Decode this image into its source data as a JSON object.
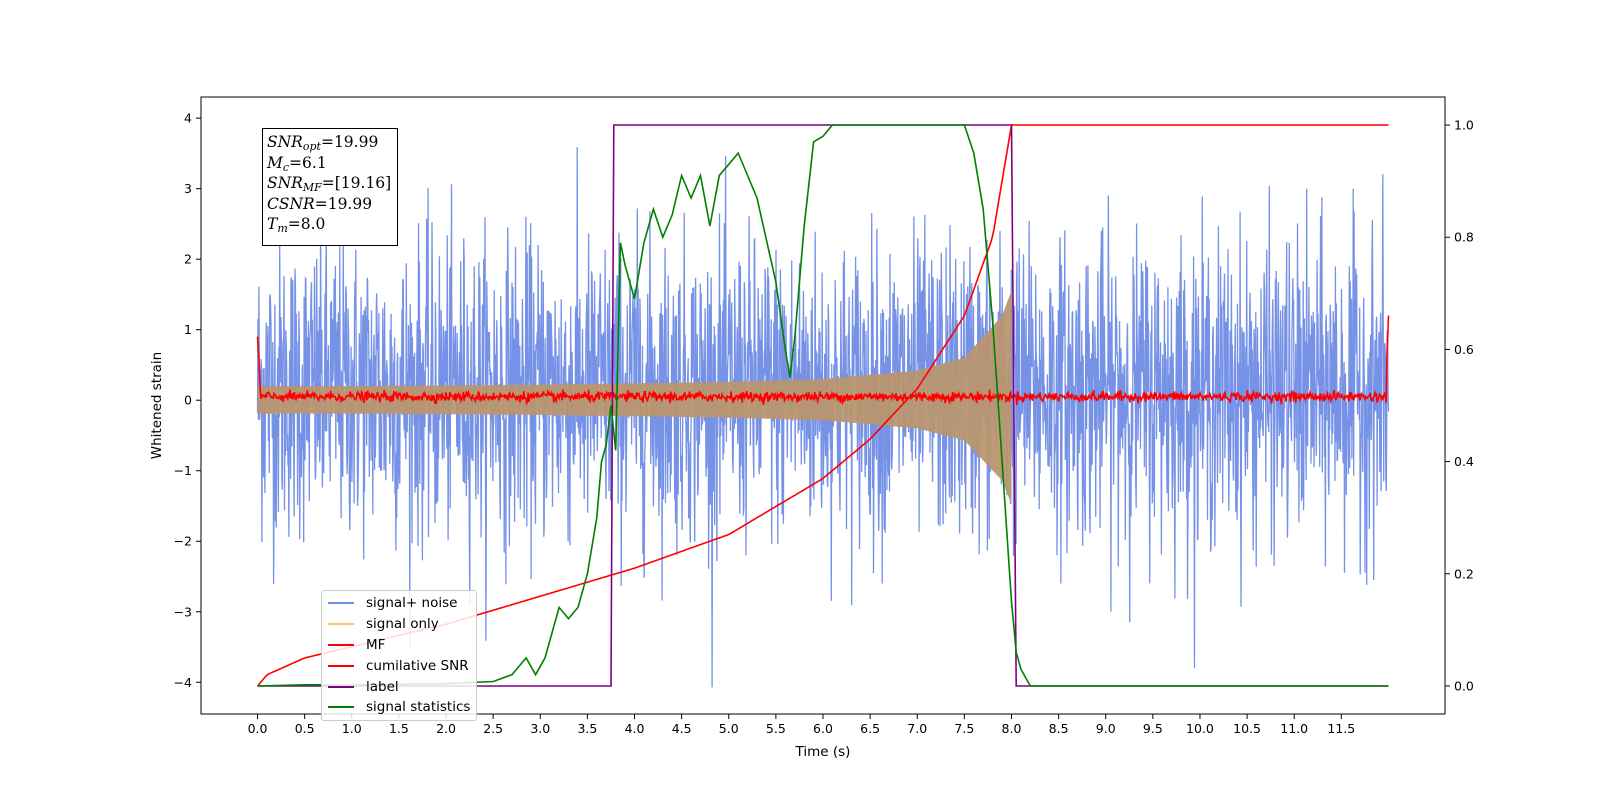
{
  "chart_data": {
    "type": "line",
    "xlabel": "Time (s)",
    "ylabel": "Whitened strain",
    "xlim": [
      -0.6,
      12.6
    ],
    "ylim_left": [
      -4.45,
      4.3
    ],
    "ylim_right": [
      -0.05,
      1.05
    ],
    "x_ticks": [
      "0.0",
      "0.5",
      "1.0",
      "1.5",
      "2.0",
      "2.5",
      "3.0",
      "3.5",
      "4.0",
      "4.5",
      "5.0",
      "5.5",
      "6.0",
      "6.5",
      "7.0",
      "7.5",
      "8.0",
      "8.5",
      "9.0",
      "9.5",
      "10.0",
      "10.5",
      "11.0",
      "11.5"
    ],
    "y_ticks_left": [
      "−4",
      "−3",
      "−2",
      "−1",
      "0",
      "1",
      "2",
      "3",
      "4"
    ],
    "y_ticks_right": [
      "0.0",
      "0.2",
      "0.4",
      "0.6",
      "0.8",
      "1.0"
    ],
    "series": [
      {
        "name": "signal+ noise",
        "color": "#6f8ce6",
        "axis": "left",
        "description_range": [
          -3.5,
          4.0
        ],
        "x_range": [
          0,
          12
        ]
      },
      {
        "name": "signal only",
        "color": "#ffc473",
        "axis": "left",
        "envelope": {
          "x": [
            0,
            1,
            2,
            3,
            4,
            5,
            6,
            7,
            7.5,
            7.9,
            8.0
          ],
          "amp": [
            0.2,
            0.2,
            0.21,
            0.22,
            0.24,
            0.26,
            0.3,
            0.42,
            0.6,
            1.2,
            1.55
          ]
        }
      },
      {
        "name": "MF",
        "color": "#ff0000",
        "axis": "left",
        "baseline": 0.05,
        "x_range": [
          0,
          12
        ]
      },
      {
        "name": "cumilative SNR",
        "color": "#ff0000",
        "axis": "right",
        "x": [
          0,
          0.1,
          0.5,
          1.0,
          2.0,
          3.0,
          4.0,
          5.0,
          6.0,
          6.5,
          7.0,
          7.5,
          7.8,
          8.0,
          8.01,
          12.0
        ],
        "y": [
          0.0,
          0.02,
          0.05,
          0.07,
          0.11,
          0.16,
          0.21,
          0.27,
          0.37,
          0.44,
          0.53,
          0.66,
          0.8,
          1.0,
          1.0,
          1.0
        ]
      },
      {
        "name": "label",
        "color": "#800080",
        "axis": "right",
        "x": [
          0,
          3.75,
          3.78,
          8.0,
          8.05,
          12.0
        ],
        "y": [
          0,
          0,
          1,
          1,
          0,
          0
        ]
      },
      {
        "name": "signal statistics",
        "color": "#008000",
        "axis": "right",
        "x": [
          0,
          0.5,
          1.0,
          1.5,
          2.0,
          2.5,
          2.7,
          2.85,
          2.95,
          3.05,
          3.1,
          3.2,
          3.3,
          3.4,
          3.5,
          3.55,
          3.6,
          3.65,
          3.7,
          3.75,
          3.8,
          3.85,
          3.9,
          4.0,
          4.05,
          4.1,
          4.2,
          4.3,
          4.4,
          4.5,
          4.6,
          4.7,
          4.8,
          4.9,
          5.0,
          5.1,
          5.2,
          5.3,
          5.5,
          5.6,
          5.65,
          5.7,
          5.8,
          5.9,
          6.0,
          6.1,
          6.2,
          6.5,
          7.0,
          7.5,
          7.6,
          7.7,
          7.8,
          7.9,
          8.0,
          8.05,
          8.1,
          8.2,
          9.0,
          12.0
        ],
        "y": [
          0.0,
          0.002,
          0.002,
          0.003,
          0.004,
          0.008,
          0.02,
          0.05,
          0.02,
          0.05,
          0.08,
          0.14,
          0.12,
          0.14,
          0.2,
          0.25,
          0.3,
          0.4,
          0.43,
          0.5,
          0.42,
          0.79,
          0.75,
          0.69,
          0.74,
          0.79,
          0.85,
          0.8,
          0.84,
          0.91,
          0.87,
          0.91,
          0.82,
          0.91,
          0.93,
          0.95,
          0.91,
          0.87,
          0.72,
          0.6,
          0.55,
          0.62,
          0.82,
          0.97,
          0.98,
          1.0,
          1.0,
          1.0,
          1.0,
          1.0,
          0.95,
          0.85,
          0.65,
          0.4,
          0.15,
          0.06,
          0.03,
          0.0,
          0.0,
          0.0
        ]
      }
    ],
    "legend_placement": "lower-left",
    "annotation": {
      "snr_opt": "=19.99",
      "mc": "=6.1",
      "snr_mf": "=[19.16]",
      "csnr": "=19.99",
      "tm": "=8.0"
    }
  }
}
